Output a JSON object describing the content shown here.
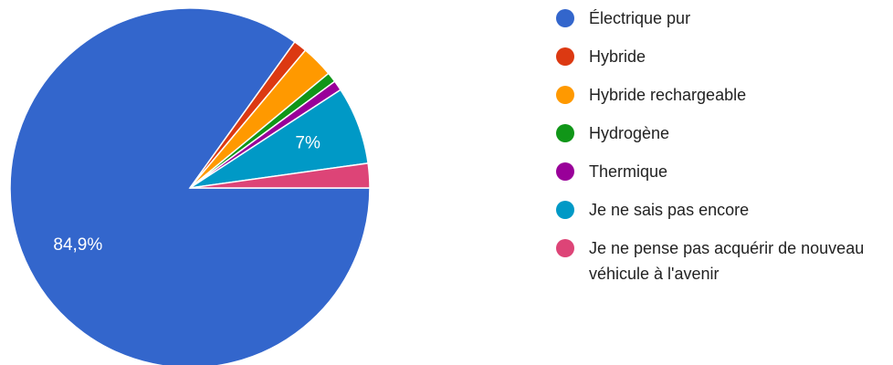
{
  "chart_data": {
    "type": "pie",
    "categories": [
      "Électrique pur",
      "Hybride",
      "Hybride rechargeable",
      "Hydrogène",
      "Thermique",
      "Je ne sais pas encore",
      "Je ne pense pas acquérir de nouveau véhicule à l'avenir"
    ],
    "values": [
      84.9,
      1.2,
      2.9,
      0.9,
      0.9,
      7,
      2.2
    ],
    "value_labels": [
      "84,9%",
      null,
      null,
      null,
      null,
      "7%",
      null
    ],
    "colors": [
      "#3366cc",
      "#dc3912",
      "#ff9900",
      "#109618",
      "#990099",
      "#0099c6",
      "#dd4477"
    ]
  }
}
